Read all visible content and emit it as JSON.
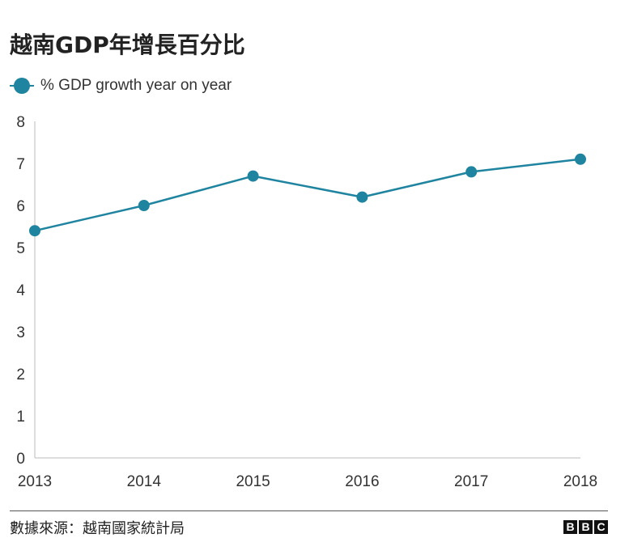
{
  "title": "越南GDP年增長百分比",
  "source": "數據來源：越南國家統計局",
  "logo": {
    "letters": [
      "B",
      "B",
      "C"
    ]
  },
  "colors": {
    "series": "#1f84a0",
    "axis": "#bbbbbb",
    "text": "#333333"
  },
  "chart_data": {
    "type": "line",
    "title": "越南GDP年增長百分比",
    "xlabel": "",
    "ylabel": "",
    "x": [
      "2013",
      "2014",
      "2015",
      "2016",
      "2017",
      "2018"
    ],
    "series": [
      {
        "name": "% GDP growth year on year",
        "values": [
          5.4,
          6.0,
          6.7,
          6.2,
          6.8,
          7.1
        ]
      }
    ],
    "yticks": [
      "0",
      "1",
      "2",
      "3",
      "4",
      "5",
      "6",
      "7",
      "8"
    ],
    "ylim": [
      0,
      8
    ],
    "grid": false,
    "legend": "top-left"
  }
}
